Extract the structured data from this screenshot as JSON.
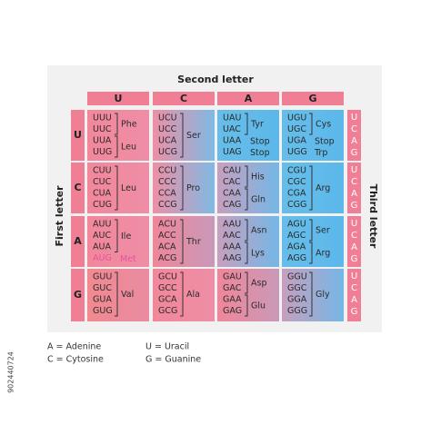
{
  "title": "Second letter",
  "second_letters": [
    "U",
    "C",
    "A",
    "G"
  ],
  "first_label": "First letter",
  "first_letters": [
    "U",
    "C",
    "A",
    "G"
  ],
  "third_label": "Third letter",
  "third_letters": [
    "U",
    "C",
    "A",
    "G"
  ],
  "rows": [
    {
      "cells": [
        {
          "groups": [
            {
              "codons": [
                "UUU",
                "UUC"
              ],
              "amino": "Phe"
            },
            {
              "codons": [
                "UUA",
                "UUG"
              ],
              "amino": "Leu"
            }
          ]
        },
        {
          "groups": [
            {
              "codons": [
                "UCU",
                "UCC",
                "UCA",
                "UCG"
              ],
              "amino": "Ser"
            }
          ]
        },
        {
          "groups": [
            {
              "codons": [
                "UAU",
                "UAC"
              ],
              "amino": "Tyr"
            },
            {
              "codons": [
                "UAA"
              ],
              "amino": "Stop"
            },
            {
              "codons": [
                "UAG"
              ],
              "amino": "Stop"
            }
          ]
        },
        {
          "groups": [
            {
              "codons": [
                "UGU",
                "UGC"
              ],
              "amino": "Cys"
            },
            {
              "codons": [
                "UGA"
              ],
              "amino": "Stop"
            },
            {
              "codons": [
                "UGG"
              ],
              "amino": "Trp"
            }
          ]
        }
      ]
    },
    {
      "cells": [
        {
          "groups": [
            {
              "codons": [
                "CUU",
                "CUC",
                "CUA",
                "CUG"
              ],
              "amino": "Leu"
            }
          ]
        },
        {
          "groups": [
            {
              "codons": [
                "CCU",
                "CCC",
                "CCA",
                "CCG"
              ],
              "amino": "Pro"
            }
          ]
        },
        {
          "groups": [
            {
              "codons": [
                "CAU",
                "CAC"
              ],
              "amino": "His"
            },
            {
              "codons": [
                "CAA",
                "CAG"
              ],
              "amino": "Gln"
            }
          ]
        },
        {
          "groups": [
            {
              "codons": [
                "CGU",
                "CGC",
                "CGA",
                "CGG"
              ],
              "amino": "Arg"
            }
          ]
        }
      ]
    },
    {
      "cells": [
        {
          "groups": [
            {
              "codons": [
                "AUU",
                "AUC",
                "AUA"
              ],
              "amino": "Ile"
            },
            {
              "codons": [
                "AUG"
              ],
              "amino": "Met",
              "color": "#e0569d"
            }
          ]
        },
        {
          "groups": [
            {
              "codons": [
                "ACU",
                "ACC",
                "ACA",
                "ACG"
              ],
              "amino": "Thr"
            }
          ]
        },
        {
          "groups": [
            {
              "codons": [
                "AAU",
                "AAC"
              ],
              "amino": "Asn"
            },
            {
              "codons": [
                "AAA",
                "AAG"
              ],
              "amino": "Lys"
            }
          ]
        },
        {
          "groups": [
            {
              "codons": [
                "AGU",
                "AGC"
              ],
              "amino": "Ser"
            },
            {
              "codons": [
                "AGA",
                "AGG"
              ],
              "amino": "Arg"
            }
          ]
        }
      ]
    },
    {
      "cells": [
        {
          "groups": [
            {
              "codons": [
                "GUU",
                "GUC",
                "GUA",
                "GUG"
              ],
              "amino": "Val"
            }
          ]
        },
        {
          "groups": [
            {
              "codons": [
                "GCU",
                "GCC",
                "GCA",
                "GCG"
              ],
              "amino": "Ala"
            }
          ]
        },
        {
          "groups": [
            {
              "codons": [
                "GAU",
                "GAC"
              ],
              "amino": "Asp"
            },
            {
              "codons": [
                "GAA",
                "GAG"
              ],
              "amino": "Glu"
            }
          ]
        },
        {
          "groups": [
            {
              "codons": [
                "GGU",
                "GGC",
                "GGA",
                "GGG"
              ],
              "amino": "Gly"
            }
          ]
        }
      ]
    }
  ],
  "legend": [
    "A = Adenine",
    "C = Cytosine",
    "U = Uracil",
    "G = Guanine"
  ],
  "stock_id": "902440724"
}
